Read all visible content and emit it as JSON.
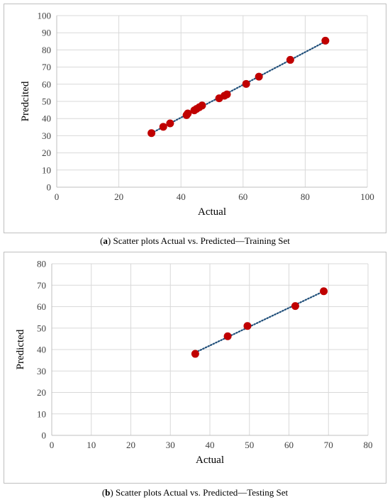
{
  "chart_data": [
    {
      "type": "scatter",
      "xlabel": "Actual",
      "ylabel": "Predcited",
      "xlim": [
        0,
        100
      ],
      "ylim": [
        0,
        100
      ],
      "xticks": [
        0,
        20,
        40,
        60,
        80,
        100
      ],
      "yticks": [
        0,
        10,
        20,
        30,
        40,
        50,
        60,
        70,
        80,
        90,
        100
      ],
      "grid": true,
      "trendline": {
        "style": "dotted",
        "color": "#1f4e79",
        "x_range": [
          30.5,
          86.5
        ]
      },
      "marker_color": "#c00000",
      "points": [
        {
          "x": 30.5,
          "y": 31.5
        },
        {
          "x": 34.3,
          "y": 35.2
        },
        {
          "x": 36.5,
          "y": 37.2
        },
        {
          "x": 41.8,
          "y": 42.0
        },
        {
          "x": 42.2,
          "y": 43.0
        },
        {
          "x": 44.3,
          "y": 44.8
        },
        {
          "x": 45.0,
          "y": 45.6
        },
        {
          "x": 45.9,
          "y": 46.6
        },
        {
          "x": 46.8,
          "y": 47.6
        },
        {
          "x": 52.3,
          "y": 51.8
        },
        {
          "x": 54.0,
          "y": 53.3
        },
        {
          "x": 54.8,
          "y": 54.1
        },
        {
          "x": 61.0,
          "y": 60.2
        },
        {
          "x": 65.1,
          "y": 64.4
        },
        {
          "x": 75.2,
          "y": 74.2
        },
        {
          "x": 86.5,
          "y": 85.4
        }
      ]
    },
    {
      "type": "scatter",
      "xlabel": "Actual",
      "ylabel": "Predicted",
      "xlim": [
        0,
        80
      ],
      "ylim": [
        0,
        80
      ],
      "xticks": [
        0,
        10,
        20,
        30,
        40,
        50,
        60,
        70,
        80
      ],
      "yticks": [
        0,
        10,
        20,
        30,
        40,
        50,
        60,
        70,
        80
      ],
      "grid": true,
      "trendline": {
        "style": "dotted",
        "color": "#1f4e79",
        "x_range": [
          36.3,
          68.8
        ]
      },
      "marker_color": "#c00000",
      "points": [
        {
          "x": 36.3,
          "y": 38.0
        },
        {
          "x": 44.5,
          "y": 46.2
        },
        {
          "x": 49.5,
          "y": 51.0
        },
        {
          "x": 61.6,
          "y": 60.3
        },
        {
          "x": 68.8,
          "y": 67.2
        }
      ]
    }
  ],
  "captions": {
    "a": {
      "letter": "a",
      "text": " Scatter plots Actual vs. Predicted—Training Set"
    },
    "b": {
      "letter": "b",
      "text": " Scatter plots Actual vs. Predicted—Testing Set"
    }
  }
}
